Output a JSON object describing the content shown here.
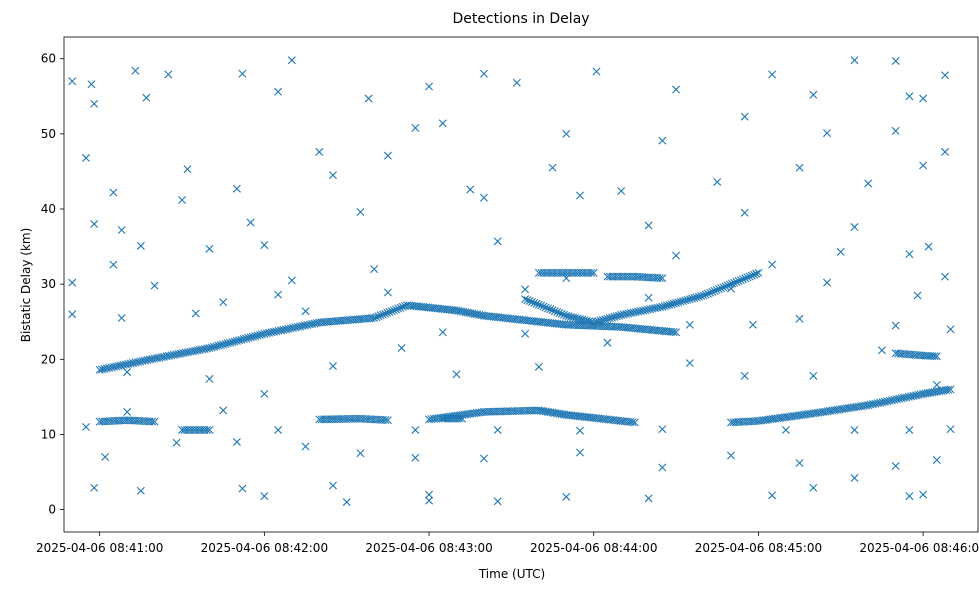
{
  "chart_data": {
    "type": "scatter",
    "title": "Detections in Delay",
    "xlabel": "Time (UTC)",
    "ylabel": "Bistatic Delay (km)",
    "marker": "x",
    "color": "#1f77b4",
    "xlim": [
      "2025-04-06 08:40:47",
      "2025-04-06 08:46:20"
    ],
    "ylim": [
      -2.98,
      62.89
    ],
    "x_ticks": [
      "2025-04-06 08:41:00",
      "2025-04-06 08:42:00",
      "2025-04-06 08:43:00",
      "2025-04-06 08:44:00",
      "2025-04-06 08:45:00",
      "2025-04-06 08:46:00"
    ],
    "y_ticks": [
      0,
      10,
      20,
      30,
      40,
      50,
      60
    ],
    "tracks": [
      {
        "points": [
          [
            "2025-04-06 08:41:00",
            18.6
          ],
          [
            "2025-04-06 08:41:20",
            20.1
          ],
          [
            "2025-04-06 08:41:40",
            21.5
          ],
          [
            "2025-04-06 08:42:00",
            23.4
          ],
          [
            "2025-04-06 08:42:20",
            24.9
          ],
          [
            "2025-04-06 08:42:40",
            25.5
          ],
          [
            "2025-04-06 08:42:52",
            27.2
          ],
          [
            "2025-04-06 08:43:10",
            26.5
          ],
          [
            "2025-04-06 08:43:20",
            25.8
          ],
          [
            "2025-04-06 08:43:40",
            25.0
          ],
          [
            "2025-04-06 08:43:50",
            24.6
          ],
          [
            "2025-04-06 08:44:10",
            24.3
          ],
          [
            "2025-04-06 08:44:30",
            23.6
          ]
        ]
      },
      {
        "points": [
          [
            "2025-04-06 08:43:35",
            28.0
          ],
          [
            "2025-04-06 08:43:50",
            25.8
          ],
          [
            "2025-04-06 08:44:00",
            24.9
          ],
          [
            "2025-04-06 08:44:10",
            25.9
          ],
          [
            "2025-04-06 08:44:25",
            27.0
          ],
          [
            "2025-04-06 08:44:40",
            28.5
          ],
          [
            "2025-04-06 08:45:00",
            31.5
          ]
        ]
      },
      {
        "points": [
          [
            "2025-04-06 08:43:00",
            12.0
          ],
          [
            "2025-04-06 08:43:20",
            13.0
          ],
          [
            "2025-04-06 08:43:40",
            13.2
          ],
          [
            "2025-04-06 08:43:50",
            12.6
          ],
          [
            "2025-04-06 08:44:00",
            12.2
          ],
          [
            "2025-04-06 08:44:15",
            11.6
          ]
        ]
      },
      {
        "points": [
          [
            "2025-04-06 08:44:50",
            11.6
          ],
          [
            "2025-04-06 08:45:00",
            11.8
          ],
          [
            "2025-04-06 08:45:20",
            12.8
          ],
          [
            "2025-04-06 08:45:40",
            13.9
          ],
          [
            "2025-04-06 08:46:00",
            15.4
          ],
          [
            "2025-04-06 08:46:10",
            16.0
          ]
        ]
      },
      {
        "points": [
          [
            "2025-04-06 08:43:40",
            31.5
          ],
          [
            "2025-04-06 08:43:50",
            31.5
          ],
          [
            "2025-04-06 08:44:00",
            31.5
          ]
        ]
      },
      {
        "points": [
          [
            "2025-04-06 08:44:05",
            31.0
          ],
          [
            "2025-04-06 08:44:15",
            31.0
          ],
          [
            "2025-04-06 08:44:25",
            30.8
          ]
        ]
      },
      {
        "points": [
          [
            "2025-04-06 08:45:50",
            20.8
          ],
          [
            "2025-04-06 08:46:00",
            20.5
          ],
          [
            "2025-04-06 08:46:05",
            20.4
          ]
        ]
      },
      {
        "points": [
          [
            "2025-04-06 08:41:00",
            11.7
          ],
          [
            "2025-04-06 08:41:10",
            11.9
          ],
          [
            "2025-04-06 08:41:20",
            11.7
          ]
        ]
      },
      {
        "points": [
          [
            "2025-04-06 08:42:20",
            12.0
          ],
          [
            "2025-04-06 08:42:35",
            12.1
          ],
          [
            "2025-04-06 08:42:45",
            11.9
          ]
        ]
      },
      {
        "points": [
          [
            "2025-04-06 08:41:30",
            10.6
          ],
          [
            "2025-04-06 08:41:40",
            10.6
          ]
        ]
      },
      {
        "points": [
          [
            "2025-04-06 08:43:05",
            12.1
          ],
          [
            "2025-04-06 08:43:12",
            12.1
          ]
        ]
      }
    ],
    "clutter": [
      [
        "2025-04-06 08:40:50",
        57.0
      ],
      [
        "2025-04-06 08:40:57",
        56.6
      ],
      [
        "2025-04-06 08:41:13",
        58.4
      ],
      [
        "2025-04-06 08:41:25",
        57.9
      ],
      [
        "2025-04-06 08:41:52",
        58.0
      ],
      [
        "2025-04-06 08:42:10",
        59.8
      ],
      [
        "2025-04-06 08:43:20",
        58.0
      ],
      [
        "2025-04-06 08:44:01",
        58.3
      ],
      [
        "2025-04-06 08:45:05",
        57.9
      ],
      [
        "2025-04-06 08:45:35",
        59.8
      ],
      [
        "2025-04-06 08:45:50",
        59.7
      ],
      [
        "2025-04-06 08:46:08",
        57.8
      ],
      [
        "2025-04-06 08:40:58",
        54.0
      ],
      [
        "2025-04-06 08:41:17",
        54.8
      ],
      [
        "2025-04-06 08:42:05",
        55.6
      ],
      [
        "2025-04-06 08:42:38",
        54.7
      ],
      [
        "2025-04-06 08:43:00",
        56.3
      ],
      [
        "2025-04-06 08:43:32",
        56.8
      ],
      [
        "2025-04-06 08:44:30",
        55.9
      ],
      [
        "2025-04-06 08:45:20",
        55.2
      ],
      [
        "2025-04-06 08:45:55",
        55.0
      ],
      [
        "2025-04-06 08:46:00",
        54.7
      ],
      [
        "2025-04-06 08:40:55",
        46.8
      ],
      [
        "2025-04-06 08:41:32",
        45.3
      ],
      [
        "2025-04-06 08:42:20",
        47.6
      ],
      [
        "2025-04-06 08:42:45",
        47.1
      ],
      [
        "2025-04-06 08:42:55",
        50.8
      ],
      [
        "2025-04-06 08:43:05",
        51.4
      ],
      [
        "2025-04-06 08:43:50",
        50.0
      ],
      [
        "2025-04-06 08:44:25",
        49.1
      ],
      [
        "2025-04-06 08:44:55",
        52.3
      ],
      [
        "2025-04-06 08:45:25",
        50.1
      ],
      [
        "2025-04-06 08:45:50",
        50.4
      ],
      [
        "2025-04-06 08:46:08",
        47.6
      ],
      [
        "2025-04-06 08:41:05",
        42.2
      ],
      [
        "2025-04-06 08:41:50",
        42.7
      ],
      [
        "2025-04-06 08:42:25",
        44.5
      ],
      [
        "2025-04-06 08:43:15",
        42.6
      ],
      [
        "2025-04-06 08:43:45",
        45.5
      ],
      [
        "2025-04-06 08:44:10",
        42.4
      ],
      [
        "2025-04-06 08:44:45",
        43.6
      ],
      [
        "2025-04-06 08:45:15",
        45.5
      ],
      [
        "2025-04-06 08:45:40",
        43.4
      ],
      [
        "2025-04-06 08:46:00",
        45.8
      ],
      [
        "2025-04-06 08:40:58",
        38.0
      ],
      [
        "2025-04-06 08:41:08",
        37.2
      ],
      [
        "2025-04-06 08:41:30",
        41.2
      ],
      [
        "2025-04-06 08:41:55",
        38.2
      ],
      [
        "2025-04-06 08:42:35",
        39.6
      ],
      [
        "2025-04-06 08:43:20",
        41.5
      ],
      [
        "2025-04-06 08:43:55",
        41.8
      ],
      [
        "2025-04-06 08:44:20",
        37.8
      ],
      [
        "2025-04-06 08:44:55",
        39.5
      ],
      [
        "2025-04-06 08:45:35",
        37.6
      ],
      [
        "2025-04-06 08:46:02",
        35.0
      ],
      [
        "2025-04-06 08:41:15",
        35.1
      ],
      [
        "2025-04-06 08:41:40",
        34.7
      ],
      [
        "2025-04-06 08:42:00",
        35.2
      ],
      [
        "2025-04-06 08:42:10",
        30.5
      ],
      [
        "2025-04-06 08:42:40",
        32.0
      ],
      [
        "2025-04-06 08:43:25",
        35.7
      ],
      [
        "2025-04-06 08:43:50",
        30.8
      ],
      [
        "2025-04-06 08:44:30",
        33.8
      ],
      [
        "2025-04-06 08:45:05",
        32.6
      ],
      [
        "2025-04-06 08:45:30",
        34.3
      ],
      [
        "2025-04-06 08:45:55",
        34.0
      ],
      [
        "2025-04-06 08:46:08",
        31.0
      ],
      [
        "2025-04-06 08:40:50",
        30.2
      ],
      [
        "2025-04-06 08:41:05",
        32.6
      ],
      [
        "2025-04-06 08:41:20",
        29.8
      ],
      [
        "2025-04-06 08:41:45",
        27.6
      ],
      [
        "2025-04-06 08:42:05",
        28.6
      ],
      [
        "2025-04-06 08:42:45",
        28.9
      ],
      [
        "2025-04-06 08:43:35",
        29.3
      ],
      [
        "2025-04-06 08:44:20",
        28.2
      ],
      [
        "2025-04-06 08:44:50",
        29.4
      ],
      [
        "2025-04-06 08:45:25",
        30.2
      ],
      [
        "2025-04-06 08:45:58",
        28.5
      ],
      [
        "2025-04-06 08:40:50",
        26.0
      ],
      [
        "2025-04-06 08:41:08",
        25.5
      ],
      [
        "2025-04-06 08:41:35",
        26.1
      ],
      [
        "2025-04-06 08:42:15",
        26.4
      ],
      [
        "2025-04-06 08:43:05",
        23.6
      ],
      [
        "2025-04-06 08:43:35",
        23.4
      ],
      [
        "2025-04-06 08:44:35",
        24.6
      ],
      [
        "2025-04-06 08:44:58",
        24.6
      ],
      [
        "2025-04-06 08:45:15",
        25.4
      ],
      [
        "2025-04-06 08:45:50",
        24.5
      ],
      [
        "2025-04-06 08:46:10",
        24.0
      ],
      [
        "2025-04-06 08:41:10",
        18.3
      ],
      [
        "2025-04-06 08:41:40",
        17.4
      ],
      [
        "2025-04-06 08:42:00",
        15.4
      ],
      [
        "2025-04-06 08:42:25",
        19.1
      ],
      [
        "2025-04-06 08:42:50",
        21.5
      ],
      [
        "2025-04-06 08:43:10",
        18.0
      ],
      [
        "2025-04-06 08:43:40",
        19.0
      ],
      [
        "2025-04-06 08:44:05",
        22.2
      ],
      [
        "2025-04-06 08:44:35",
        19.5
      ],
      [
        "2025-04-06 08:44:55",
        17.8
      ],
      [
        "2025-04-06 08:45:20",
        17.8
      ],
      [
        "2025-04-06 08:45:45",
        21.2
      ],
      [
        "2025-04-06 08:46:05",
        16.6
      ],
      [
        "2025-04-06 08:40:55",
        11.0
      ],
      [
        "2025-04-06 08:41:10",
        13.0
      ],
      [
        "2025-04-06 08:41:45",
        13.2
      ],
      [
        "2025-04-06 08:42:05",
        10.6
      ],
      [
        "2025-04-06 08:42:55",
        10.6
      ],
      [
        "2025-04-06 08:43:25",
        10.6
      ],
      [
        "2025-04-06 08:43:55",
        10.5
      ],
      [
        "2025-04-06 08:44:25",
        10.7
      ],
      [
        "2025-04-06 08:45:10",
        10.6
      ],
      [
        "2025-04-06 08:45:35",
        10.6
      ],
      [
        "2025-04-06 08:45:55",
        10.6
      ],
      [
        "2025-04-06 08:46:10",
        10.7
      ],
      [
        "2025-04-06 08:41:02",
        7.0
      ],
      [
        "2025-04-06 08:41:28",
        8.9
      ],
      [
        "2025-04-06 08:41:50",
        9.0
      ],
      [
        "2025-04-06 08:42:15",
        8.4
      ],
      [
        "2025-04-06 08:42:35",
        7.5
      ],
      [
        "2025-04-06 08:42:55",
        6.9
      ],
      [
        "2025-04-06 08:43:20",
        6.8
      ],
      [
        "2025-04-06 08:43:55",
        7.6
      ],
      [
        "2025-04-06 08:44:25",
        5.6
      ],
      [
        "2025-04-06 08:44:50",
        7.2
      ],
      [
        "2025-04-06 08:45:15",
        6.2
      ],
      [
        "2025-04-06 08:45:35",
        4.2
      ],
      [
        "2025-04-06 08:45:50",
        5.8
      ],
      [
        "2025-04-06 08:46:05",
        6.6
      ],
      [
        "2025-04-06 08:40:58",
        2.9
      ],
      [
        "2025-04-06 08:41:15",
        2.5
      ],
      [
        "2025-04-06 08:41:52",
        2.8
      ],
      [
        "2025-04-06 08:42:00",
        1.8
      ],
      [
        "2025-04-06 08:42:25",
        3.2
      ],
      [
        "2025-04-06 08:42:30",
        1.0
      ],
      [
        "2025-04-06 08:43:00",
        1.2
      ],
      [
        "2025-04-06 08:43:00",
        2.0
      ],
      [
        "2025-04-06 08:43:25",
        1.1
      ],
      [
        "2025-04-06 08:43:50",
        1.7
      ],
      [
        "2025-04-06 08:44:20",
        1.5
      ],
      [
        "2025-04-06 08:45:05",
        1.9
      ],
      [
        "2025-04-06 08:45:20",
        2.9
      ],
      [
        "2025-04-06 08:45:55",
        1.8
      ],
      [
        "2025-04-06 08:46:00",
        2.0
      ]
    ]
  }
}
